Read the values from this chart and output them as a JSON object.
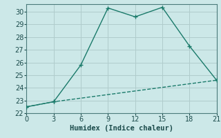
{
  "xlabel": "Humidex (Indice chaleur)",
  "background_color": "#cce8e8",
  "grid_color": "#b0cccc",
  "line_color": "#1a7a6a",
  "xlim": [
    0,
    21
  ],
  "ylim": [
    22,
    30.6
  ],
  "xticks": [
    0,
    3,
    6,
    9,
    12,
    15,
    18,
    21
  ],
  "yticks": [
    22,
    23,
    24,
    25,
    26,
    27,
    28,
    29,
    30
  ],
  "line1_x": [
    0,
    3,
    6,
    9,
    12,
    15,
    18,
    21
  ],
  "line1_y": [
    22.5,
    22.9,
    25.8,
    30.3,
    29.6,
    30.35,
    27.3,
    24.6
  ],
  "line2_x": [
    0,
    3,
    21
  ],
  "line2_y": [
    22.5,
    22.9,
    24.6
  ],
  "marker_style": "+",
  "marker_size": 5,
  "marker_lw": 1.0,
  "line_width": 1.0,
  "xlabel_fontsize": 7.5,
  "tick_fontsize": 7
}
